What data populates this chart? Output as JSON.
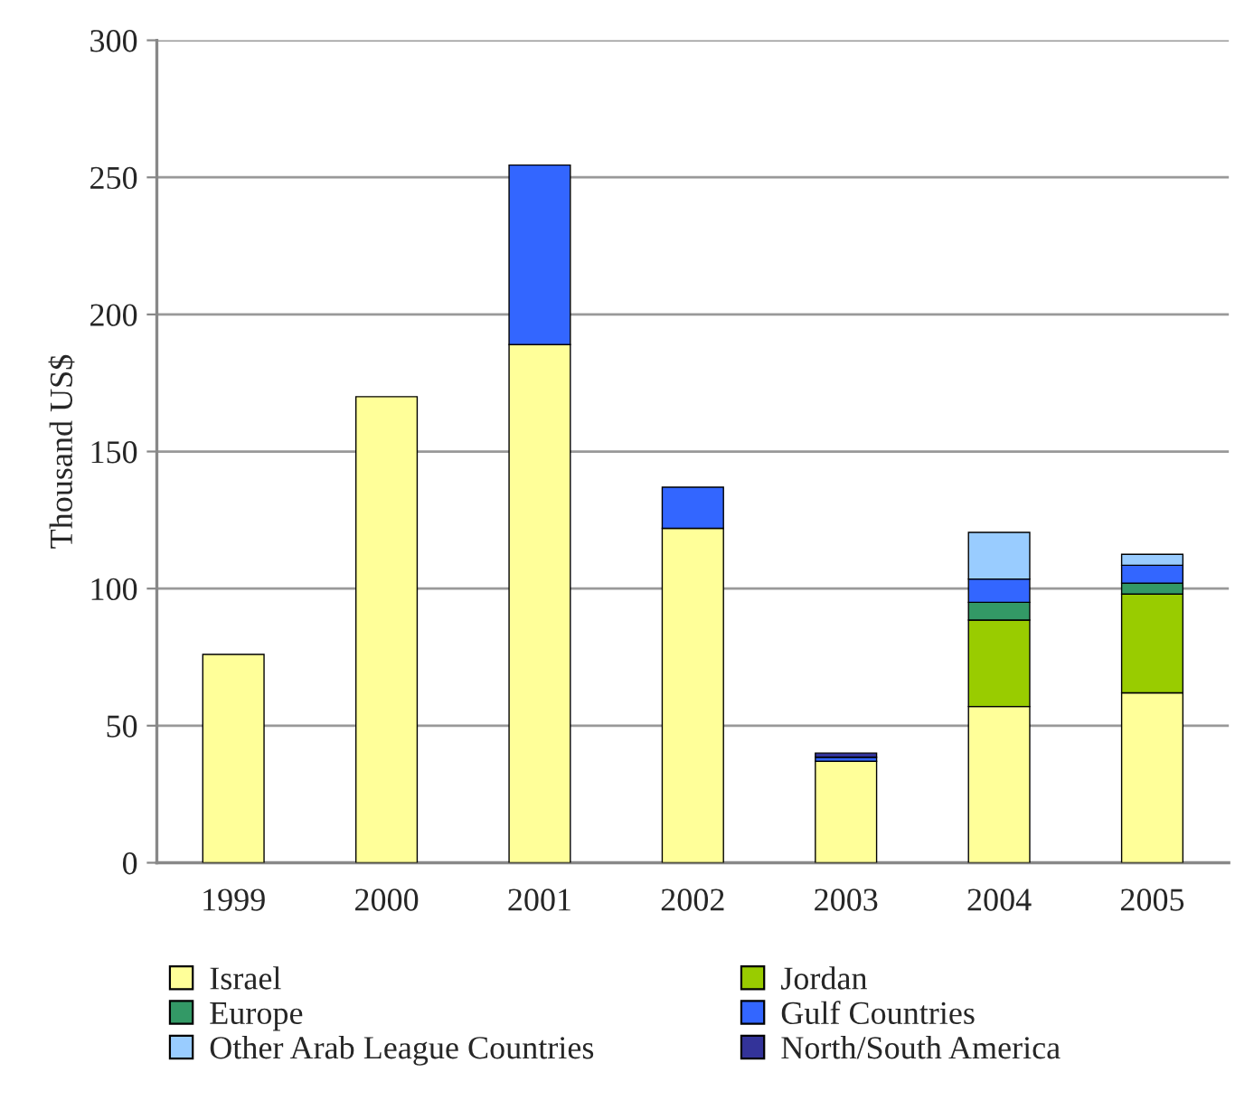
{
  "chart_data": {
    "type": "bar",
    "stacked": true,
    "ylabel": "Thousand US$",
    "categories": [
      "1999",
      "2000",
      "2001",
      "2002",
      "2003",
      "2004",
      "2005"
    ],
    "ylim": [
      0,
      300
    ],
    "yticks": [
      0,
      50,
      100,
      150,
      200,
      250,
      300
    ],
    "grid": "y",
    "legend": "bottom",
    "series": [
      {
        "name": "Israel",
        "color": "#ffff99",
        "values": [
          76,
          170,
          189,
          122,
          37,
          57,
          62
        ]
      },
      {
        "name": "Jordan",
        "color": "#99cc00",
        "values": [
          null,
          null,
          null,
          null,
          null,
          31.5,
          36
        ]
      },
      {
        "name": "Europe",
        "color": "#339966",
        "values": [
          null,
          null,
          null,
          null,
          null,
          6.5,
          4
        ]
      },
      {
        "name": "Gulf Countries",
        "color": "#3366ff",
        "values": [
          null,
          null,
          65.5,
          15,
          1.5,
          8.5,
          6.5
        ]
      },
      {
        "name": "Other Arab League Countries",
        "color": "#99ccff",
        "values": [
          null,
          null,
          null,
          null,
          null,
          17,
          4
        ]
      },
      {
        "name": "North/South America",
        "color": "#333399",
        "values": [
          null,
          null,
          null,
          null,
          1.5,
          null,
          null
        ]
      }
    ]
  }
}
